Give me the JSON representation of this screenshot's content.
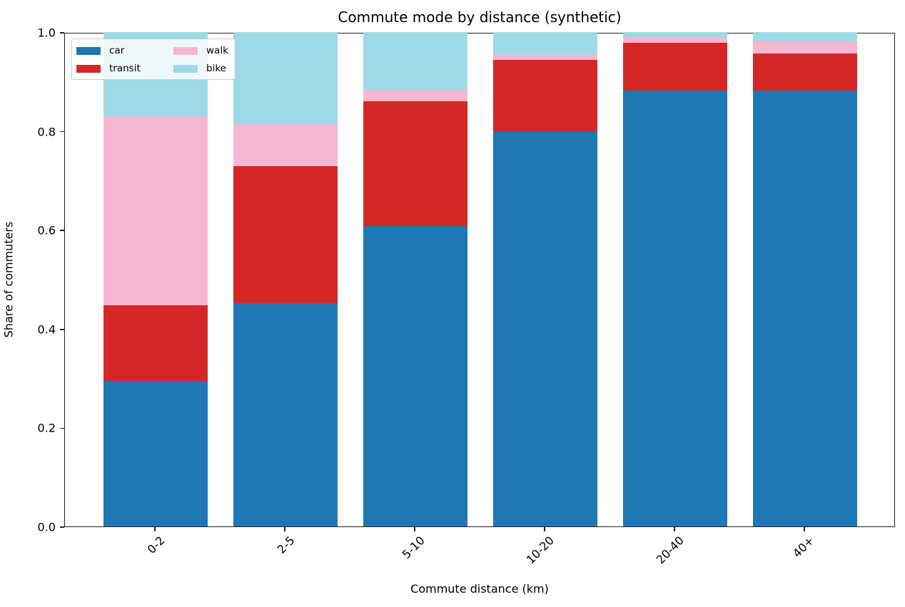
{
  "chart_data": {
    "type": "bar",
    "stacked": true,
    "title": "Commute mode by distance (synthetic)",
    "xlabel": "Commute distance (km)",
    "ylabel": "Share of commuters",
    "ylim": [
      0,
      1.0
    ],
    "yticks": [
      "0.0",
      "0.2",
      "0.4",
      "0.6",
      "0.8",
      "1.0"
    ],
    "categories": [
      "0-2",
      "2-5",
      "5-10",
      "10-20",
      "20-40",
      "40+"
    ],
    "series": [
      {
        "name": "car",
        "color": "#1f77b4",
        "values": [
          0.294,
          0.452,
          0.607,
          0.799,
          0.882,
          0.882
        ]
      },
      {
        "name": "transit",
        "color": "#d62728",
        "values": [
          0.153,
          0.277,
          0.253,
          0.145,
          0.096,
          0.075
        ]
      },
      {
        "name": "walk",
        "color": "#f7b6d2",
        "values": [
          0.383,
          0.085,
          0.023,
          0.01,
          0.012,
          0.024
        ]
      },
      {
        "name": "bike",
        "color": "#9edae5",
        "values": [
          0.17,
          0.186,
          0.117,
          0.046,
          0.01,
          0.019
        ]
      }
    ],
    "legend": {
      "position": "upper left",
      "ncol": 2,
      "entries": [
        "car",
        "transit",
        "walk",
        "bike"
      ]
    },
    "grid": false
  }
}
